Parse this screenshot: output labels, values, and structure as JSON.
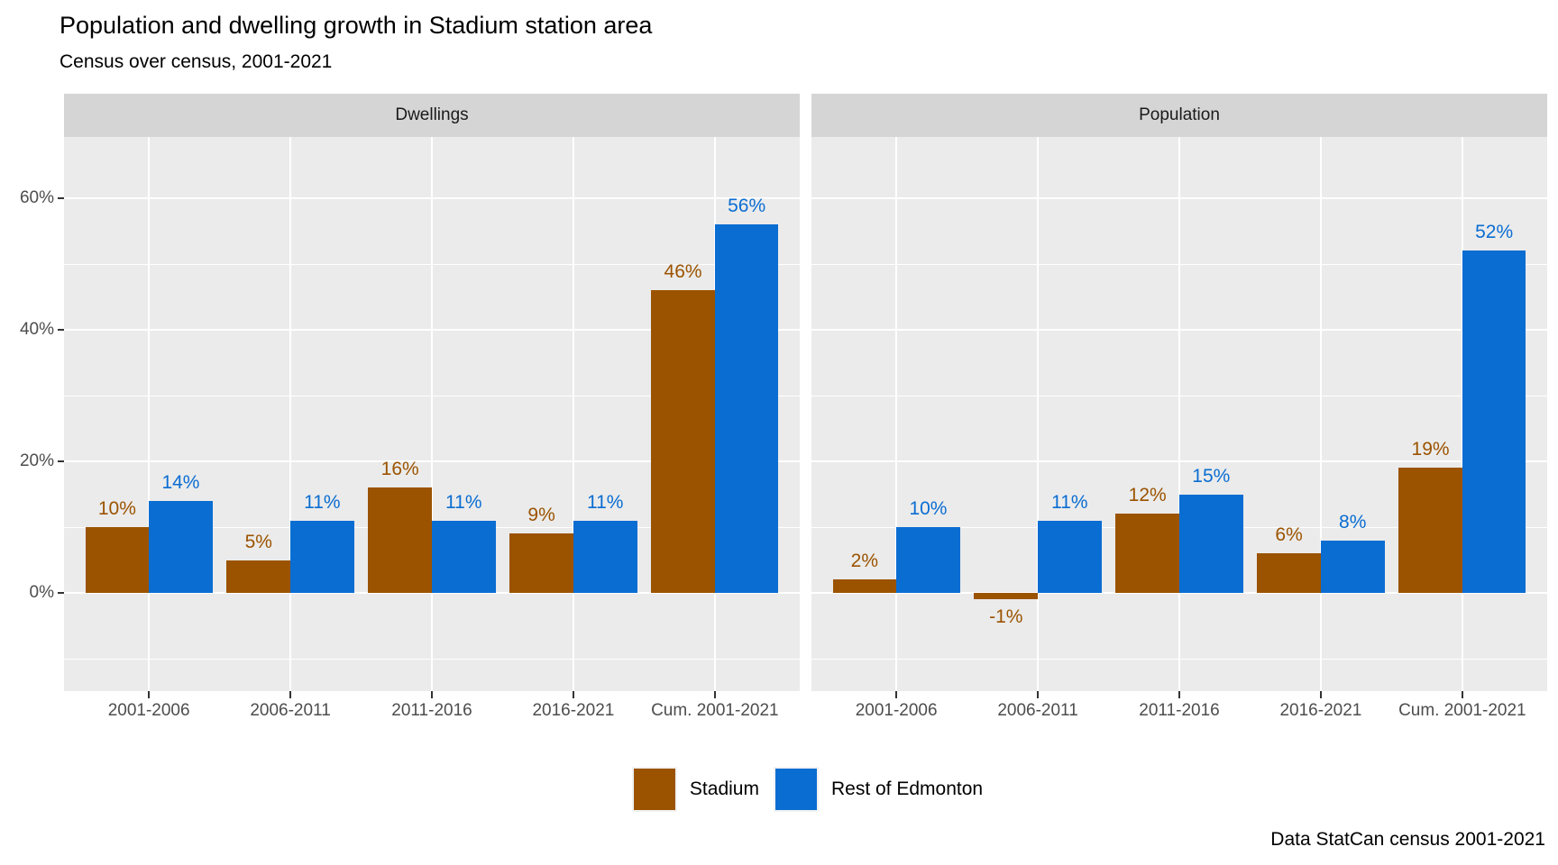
{
  "header": {
    "title": "Population and dwelling growth in Stadium station area",
    "subtitle": "Census over census, 2001-2021"
  },
  "caption": "Data StatCan census 2001-2021",
  "colors": {
    "stadium_brown": "#9b5300",
    "edmonton_blue": "#0a6dd2",
    "panel_background": "#ebebeb",
    "strip_background": "#d5d5d5",
    "gridline": "#ffffff",
    "axis_text": "#4d4d4d",
    "tick_mark": "#333333"
  },
  "legend": {
    "items": [
      {
        "label": "Stadium",
        "color": "#9b5300"
      },
      {
        "label": "Rest of Edmonton",
        "color": "#0a6dd2"
      }
    ]
  },
  "chart_data": {
    "type": "bar",
    "title": "Population and dwelling growth in Stadium station area",
    "subtitle": "Census over census, 2001-2021",
    "caption": "Data StatCan census 2001-2021",
    "categories": [
      "2001-2006",
      "2006-2011",
      "2011-2016",
      "2016-2021",
      "Cum. 2001-2021"
    ],
    "value_suffix": "%",
    "y_axis": {
      "tick_values": [
        0,
        20,
        40,
        60
      ],
      "tick_labels": [
        "0%",
        "20%",
        "40%",
        "60%"
      ],
      "minor_values": [
        -10,
        10,
        30,
        50
      ],
      "ylim": [
        -15,
        69.4
      ],
      "grid": true
    },
    "legend_position": "bottom",
    "facets": [
      {
        "label": "Dwellings",
        "series": [
          {
            "name": "Stadium",
            "color": "#9b5300",
            "values": [
              10,
              5,
              16,
              9,
              46
            ],
            "labels": [
              "10%",
              "5%",
              "16%",
              "9%",
              "46%"
            ]
          },
          {
            "name": "Rest of Edmonton",
            "color": "#0a6dd2",
            "values": [
              14,
              11,
              11,
              11,
              56
            ],
            "labels": [
              "14%",
              "11%",
              "11%",
              "11%",
              "56%"
            ]
          }
        ]
      },
      {
        "label": "Population",
        "series": [
          {
            "name": "Stadium",
            "color": "#9b5300",
            "values": [
              2,
              -1,
              12,
              6,
              19
            ],
            "labels": [
              "2%",
              "-1%",
              "12%",
              "6%",
              "19%"
            ]
          },
          {
            "name": "Rest of Edmonton",
            "color": "#0a6dd2",
            "values": [
              10,
              11,
              15,
              8,
              52
            ],
            "labels": [
              "10%",
              "11%",
              "15%",
              "8%",
              "52%"
            ]
          }
        ]
      }
    ]
  }
}
